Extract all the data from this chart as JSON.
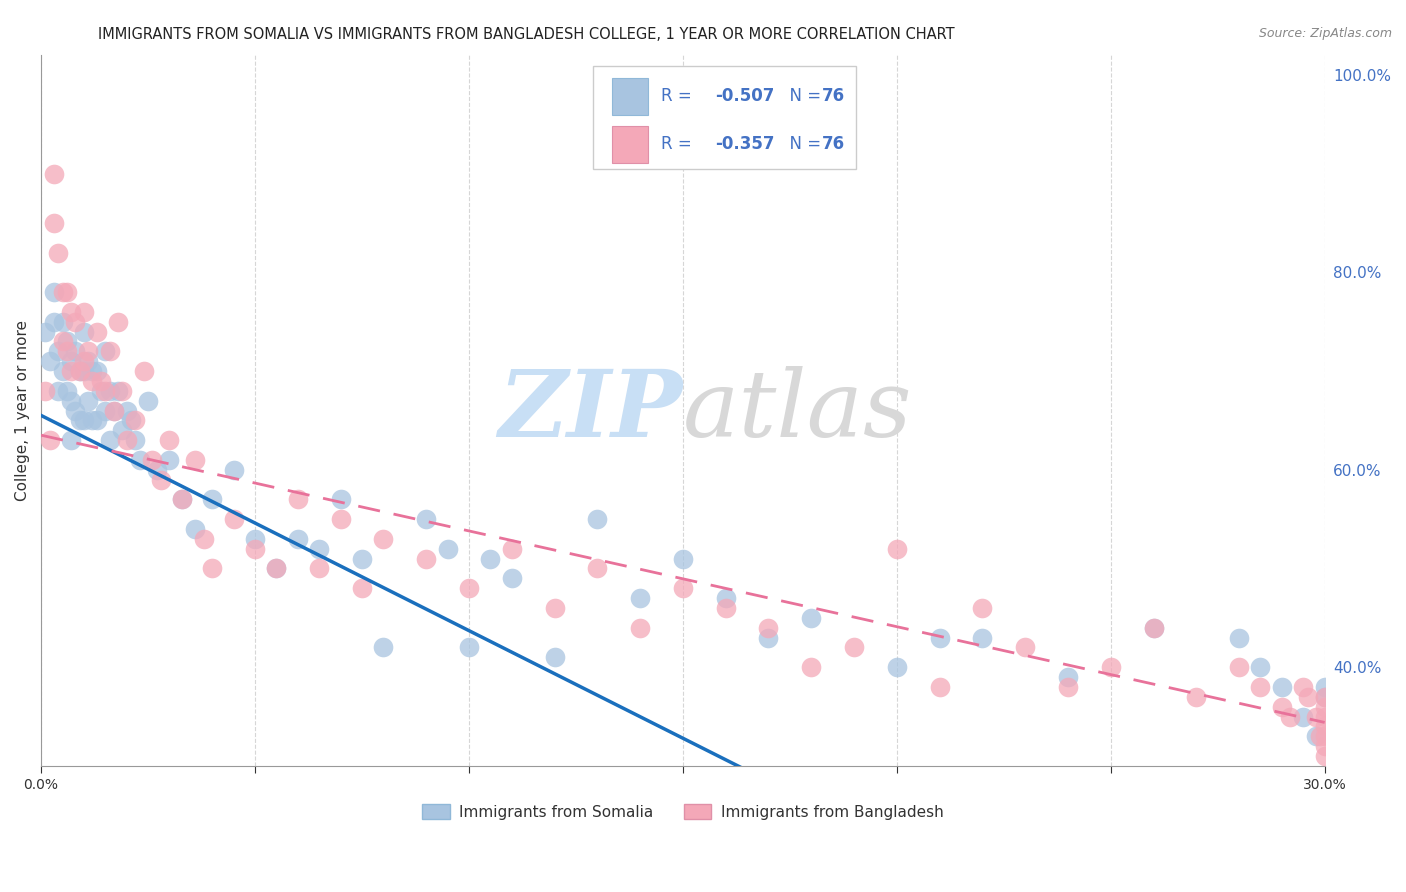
{
  "title": "IMMIGRANTS FROM SOMALIA VS IMMIGRANTS FROM BANGLADESH COLLEGE, 1 YEAR OR MORE CORRELATION CHART",
  "source": "Source: ZipAtlas.com",
  "ylabel": "College, 1 year or more",
  "legend_label_somalia": "Immigrants from Somalia",
  "legend_label_bangladesh": "Immigrants from Bangladesh",
  "R_somalia": -0.507,
  "R_bangladesh": -0.357,
  "N": 76,
  "somalia_color": "#a8c4e0",
  "bangladesh_color": "#f4a8b8",
  "somalia_line_color": "#1a6fbd",
  "bangladesh_line_color": "#e8729a",
  "legend_text_color": "#4472c4",
  "background_color": "#ffffff",
  "grid_color": "#cccccc",
  "xlim": [
    0.0,
    0.3
  ],
  "ylim": [
    0.3,
    1.02
  ],
  "right_yticks": [
    0.4,
    0.6,
    0.8,
    1.0
  ],
  "somalia_intercept": 0.655,
  "somalia_slope": -2.18,
  "bangladesh_intercept": 0.635,
  "bangladesh_slope": -0.97,
  "somalia_x": [
    0.001,
    0.002,
    0.003,
    0.003,
    0.004,
    0.004,
    0.005,
    0.005,
    0.006,
    0.006,
    0.007,
    0.007,
    0.007,
    0.008,
    0.008,
    0.009,
    0.009,
    0.01,
    0.01,
    0.01,
    0.011,
    0.011,
    0.012,
    0.012,
    0.013,
    0.013,
    0.014,
    0.015,
    0.015,
    0.016,
    0.016,
    0.017,
    0.018,
    0.019,
    0.02,
    0.021,
    0.022,
    0.023,
    0.025,
    0.027,
    0.03,
    0.033,
    0.036,
    0.04,
    0.045,
    0.05,
    0.055,
    0.06,
    0.065,
    0.07,
    0.075,
    0.08,
    0.09,
    0.095,
    0.1,
    0.105,
    0.11,
    0.12,
    0.13,
    0.14,
    0.15,
    0.16,
    0.17,
    0.18,
    0.2,
    0.21,
    0.22,
    0.24,
    0.26,
    0.28,
    0.285,
    0.29,
    0.295,
    0.298,
    0.3,
    0.3
  ],
  "somalia_y": [
    0.74,
    0.71,
    0.78,
    0.75,
    0.72,
    0.68,
    0.75,
    0.7,
    0.73,
    0.68,
    0.71,
    0.67,
    0.63,
    0.72,
    0.66,
    0.7,
    0.65,
    0.74,
    0.7,
    0.65,
    0.71,
    0.67,
    0.7,
    0.65,
    0.7,
    0.65,
    0.68,
    0.72,
    0.66,
    0.68,
    0.63,
    0.66,
    0.68,
    0.64,
    0.66,
    0.65,
    0.63,
    0.61,
    0.67,
    0.6,
    0.61,
    0.57,
    0.54,
    0.57,
    0.6,
    0.53,
    0.5,
    0.53,
    0.52,
    0.57,
    0.51,
    0.42,
    0.55,
    0.52,
    0.42,
    0.51,
    0.49,
    0.41,
    0.55,
    0.47,
    0.51,
    0.47,
    0.43,
    0.45,
    0.4,
    0.43,
    0.43,
    0.39,
    0.44,
    0.43,
    0.4,
    0.38,
    0.35,
    0.33,
    0.38,
    0.37
  ],
  "bangladesh_x": [
    0.001,
    0.002,
    0.003,
    0.003,
    0.004,
    0.005,
    0.005,
    0.006,
    0.006,
    0.007,
    0.007,
    0.008,
    0.009,
    0.01,
    0.01,
    0.011,
    0.012,
    0.013,
    0.014,
    0.015,
    0.016,
    0.017,
    0.018,
    0.019,
    0.02,
    0.022,
    0.024,
    0.026,
    0.028,
    0.03,
    0.033,
    0.036,
    0.038,
    0.04,
    0.045,
    0.05,
    0.055,
    0.06,
    0.065,
    0.07,
    0.075,
    0.08,
    0.09,
    0.1,
    0.11,
    0.12,
    0.13,
    0.14,
    0.15,
    0.16,
    0.17,
    0.18,
    0.19,
    0.2,
    0.21,
    0.22,
    0.23,
    0.24,
    0.25,
    0.26,
    0.27,
    0.28,
    0.285,
    0.29,
    0.292,
    0.295,
    0.296,
    0.298,
    0.299,
    0.3,
    0.3,
    0.3,
    0.3,
    0.3,
    0.3,
    0.3
  ],
  "bangladesh_y": [
    0.68,
    0.63,
    0.9,
    0.85,
    0.82,
    0.78,
    0.73,
    0.78,
    0.72,
    0.76,
    0.7,
    0.75,
    0.7,
    0.76,
    0.71,
    0.72,
    0.69,
    0.74,
    0.69,
    0.68,
    0.72,
    0.66,
    0.75,
    0.68,
    0.63,
    0.65,
    0.7,
    0.61,
    0.59,
    0.63,
    0.57,
    0.61,
    0.53,
    0.5,
    0.55,
    0.52,
    0.5,
    0.57,
    0.5,
    0.55,
    0.48,
    0.53,
    0.51,
    0.48,
    0.52,
    0.46,
    0.5,
    0.44,
    0.48,
    0.46,
    0.44,
    0.4,
    0.42,
    0.52,
    0.38,
    0.46,
    0.42,
    0.38,
    0.4,
    0.44,
    0.37,
    0.4,
    0.38,
    0.36,
    0.35,
    0.38,
    0.37,
    0.35,
    0.33,
    0.37,
    0.36,
    0.35,
    0.34,
    0.33,
    0.32,
    0.31
  ]
}
